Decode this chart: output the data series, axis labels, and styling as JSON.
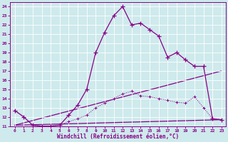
{
  "xlabel": "Windchill (Refroidissement éolien,°C)",
  "background_color": "#ceeaec",
  "line_color": "#880088",
  "xlim": [
    -0.5,
    23.5
  ],
  "ylim": [
    11,
    24.5
  ],
  "x_ticks": [
    0,
    1,
    2,
    3,
    4,
    5,
    6,
    7,
    8,
    9,
    10,
    11,
    12,
    13,
    14,
    15,
    16,
    17,
    18,
    19,
    20,
    21,
    22,
    23
  ],
  "y_ticks": [
    11,
    12,
    13,
    14,
    15,
    16,
    17,
    18,
    19,
    20,
    21,
    22,
    23,
    24
  ],
  "line1_x": [
    0,
    1,
    2,
    3,
    4,
    5,
    6,
    7,
    8,
    9,
    10,
    11,
    12,
    13,
    14,
    15,
    16,
    17,
    18,
    19,
    20,
    21,
    22,
    23
  ],
  "line1_y": [
    12.7,
    12.0,
    11.1,
    11.0,
    11.0,
    11.1,
    12.2,
    13.3,
    15.0,
    19.0,
    21.2,
    23.0,
    24.0,
    22.0,
    22.2,
    21.5,
    20.8,
    18.5,
    19.0,
    18.2,
    17.5,
    17.5,
    11.8,
    11.7
  ],
  "line2_x": [
    0,
    1,
    2,
    3,
    4,
    5,
    6,
    7,
    8,
    9,
    10,
    11,
    12,
    13,
    14,
    15,
    16,
    17,
    18,
    19,
    20,
    21,
    22,
    23
  ],
  "line2_y": [
    12.7,
    12.0,
    11.1,
    11.0,
    11.0,
    11.1,
    11.5,
    11.8,
    12.2,
    13.0,
    13.5,
    14.0,
    14.5,
    14.8,
    14.3,
    14.2,
    14.0,
    13.8,
    13.6,
    13.5,
    14.2,
    13.0,
    11.8,
    11.7
  ],
  "line3_x": [
    0,
    23
  ],
  "line3_y": [
    11.1,
    11.7
  ],
  "line4_x": [
    0,
    23
  ],
  "line4_y": [
    11.1,
    17.0
  ]
}
